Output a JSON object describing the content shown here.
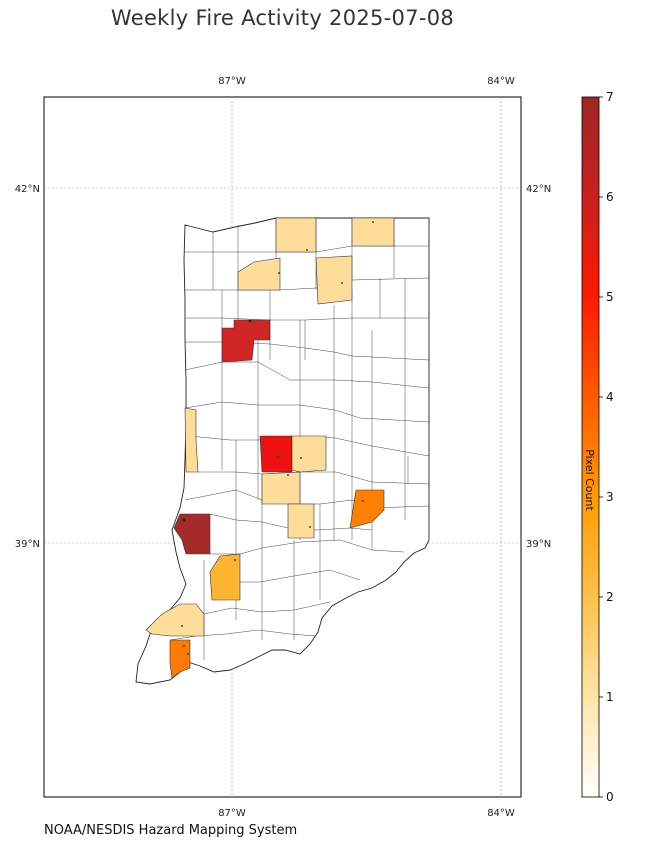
{
  "title": "Weekly Fire Activity 2025-07-08",
  "footer": "NOAA/NESDIS Hazard Mapping System",
  "axes": {
    "top_lon_labels": [
      "87°W",
      "84°W"
    ],
    "bottom_lon_labels": [
      "87°W",
      "84°W"
    ],
    "left_lat_labels": [
      "42°N",
      "39°N"
    ],
    "right_lat_labels": [
      "42°N",
      "39°N"
    ]
  },
  "colorbar": {
    "label": "Pixel Count",
    "ticks": [
      "0",
      "1",
      "2",
      "3",
      "4",
      "5",
      "6",
      "7"
    ],
    "min": 0,
    "max": 7,
    "colors": [
      "#ffffff",
      "#ffe4a8",
      "#ffc04a",
      "#ff9a00",
      "#ff5a00",
      "#ff1a00",
      "#c8201f",
      "#a02626"
    ]
  },
  "fire_counties": [
    {
      "value": 1,
      "color": "#fedc9a"
    },
    {
      "value": 1,
      "color": "#fedc9a"
    },
    {
      "value": 1,
      "color": "#fedc9a"
    },
    {
      "value": 1,
      "color": "#fedc9a"
    },
    {
      "value": 6,
      "color": "#cf2525"
    },
    {
      "value": 1,
      "color": "#fedc9a"
    },
    {
      "value": 5,
      "color": "#ee1111"
    },
    {
      "value": 1,
      "color": "#fedc9a"
    },
    {
      "value": 1,
      "color": "#fedc9a"
    },
    {
      "value": 1,
      "color": "#fedc9a"
    },
    {
      "value": 3,
      "color": "#ff7f00"
    },
    {
      "value": 7,
      "color": "#a52a2a"
    },
    {
      "value": 2,
      "color": "#fdb431"
    },
    {
      "value": 1,
      "color": "#fedc9a"
    },
    {
      "value": 3,
      "color": "#ff7a05"
    }
  ]
}
